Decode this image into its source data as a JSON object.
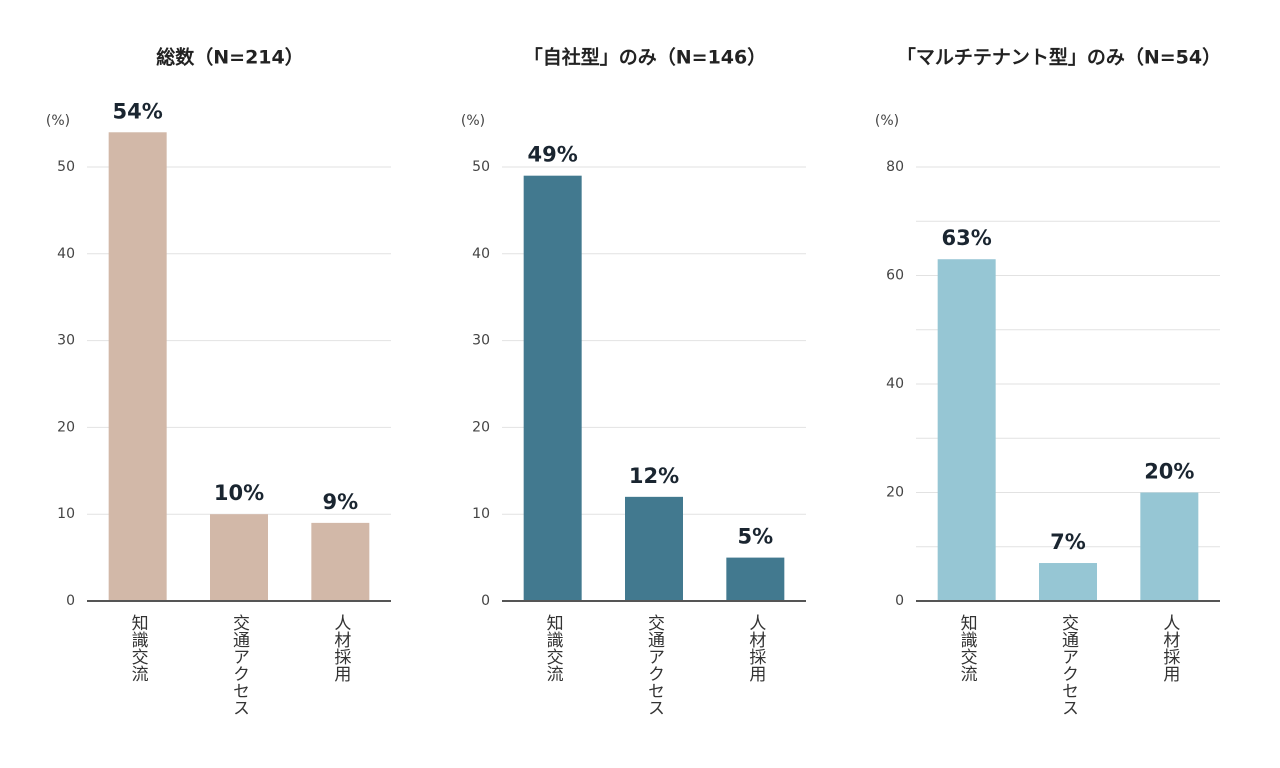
{
  "chart_data": [
    {
      "type": "bar",
      "title": "総数（N=214）",
      "y_label": "(%)",
      "categories": [
        "知識交流",
        "交通アクセス",
        "人材採用"
      ],
      "values": [
        54,
        10,
        9
      ],
      "value_labels": [
        "54%",
        "10%",
        "9%"
      ],
      "color": "#d2b8a8",
      "ylim": [
        0,
        50
      ],
      "yticks": [
        0,
        10,
        20,
        30,
        40,
        50
      ],
      "grid": true
    },
    {
      "type": "bar",
      "title": "「自社型」のみ（N=146）",
      "y_label": "(%)",
      "categories": [
        "知識交流",
        "交通アクセス",
        "人材採用"
      ],
      "values": [
        49,
        12,
        5
      ],
      "value_labels": [
        "49%",
        "12%",
        "5%"
      ],
      "color": "#42798f",
      "ylim": [
        0,
        50
      ],
      "yticks": [
        0,
        10,
        20,
        30,
        40,
        50
      ],
      "grid": true
    },
    {
      "type": "bar",
      "title": "「マルチテナント型」のみ（N=54）",
      "y_label": "(%)",
      "categories": [
        "知識交流",
        "交通アクセス",
        "人材採用"
      ],
      "values": [
        63,
        7,
        20
      ],
      "value_labels": [
        "63%",
        "7%",
        "20%"
      ],
      "color": "#96c6d4",
      "ylim": [
        0,
        80
      ],
      "yticks": [
        0,
        20,
        40,
        60,
        80
      ],
      "yminor": [
        10,
        30,
        50,
        70
      ],
      "grid": true
    }
  ]
}
